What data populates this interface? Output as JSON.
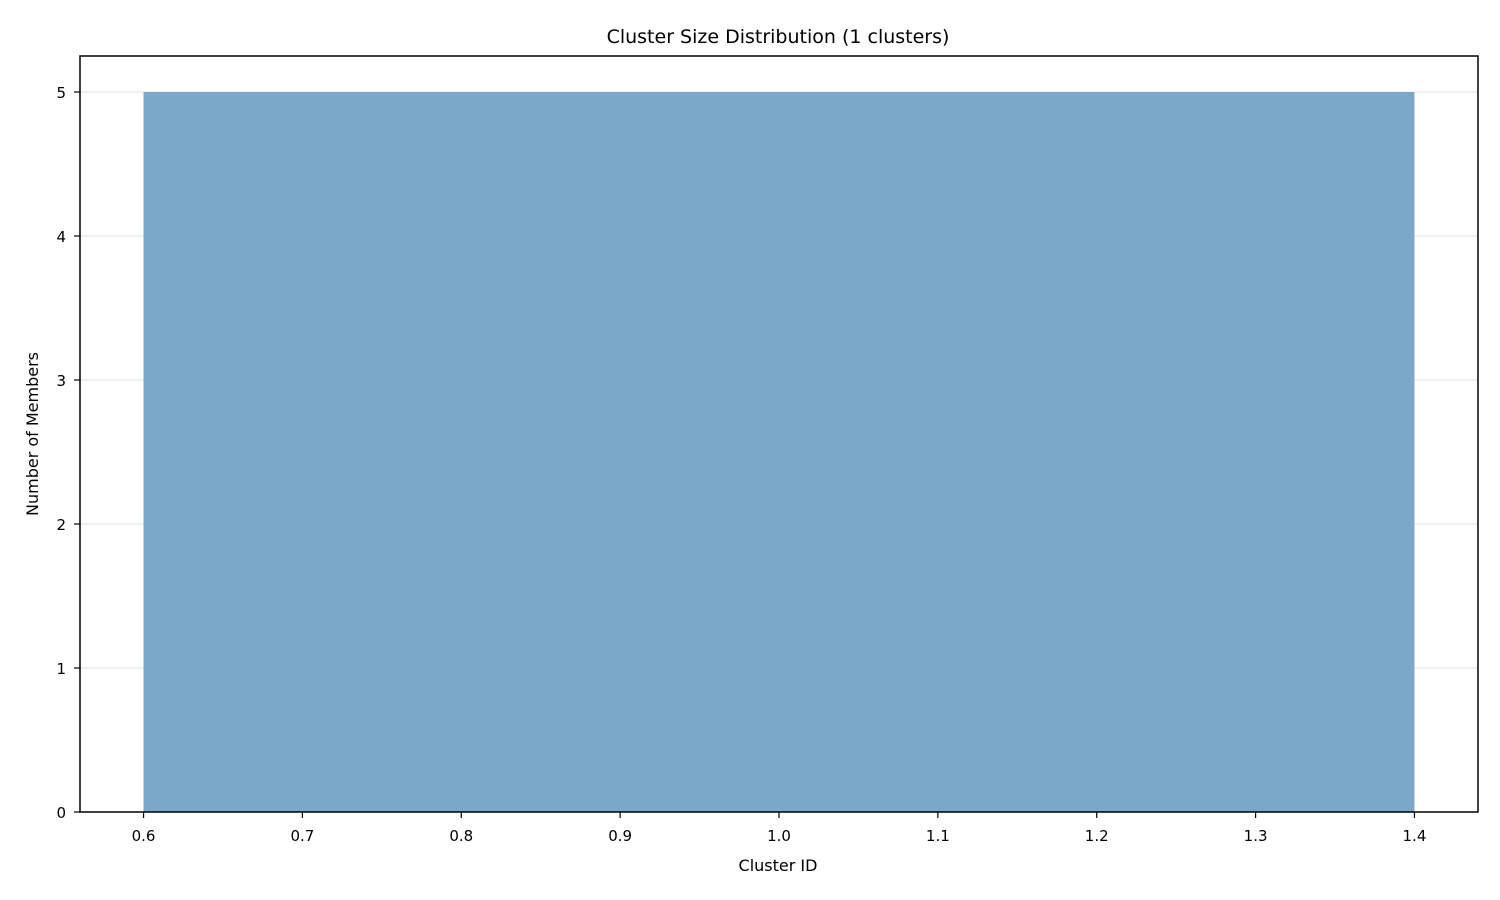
{
  "chart_data": {
    "type": "bar",
    "title": "Cluster Size Distribution (1 clusters)",
    "xlabel": "Cluster ID",
    "ylabel": "Number of Members",
    "categories": [
      1.0
    ],
    "values": [
      5
    ],
    "bar_width": 0.8,
    "xlim": [
      0.56,
      1.44
    ],
    "ylim": [
      0,
      5.25
    ],
    "xticks": [
      0.6,
      0.7,
      0.8,
      0.9,
      1.0,
      1.1,
      1.2,
      1.3,
      1.4
    ],
    "xtick_labels": [
      "0.6",
      "0.7",
      "0.8",
      "0.9",
      "1.0",
      "1.1",
      "1.2",
      "1.3",
      "1.4"
    ],
    "yticks": [
      0,
      1,
      2,
      3,
      4,
      5
    ],
    "ytick_labels": [
      "0",
      "1",
      "2",
      "3",
      "4",
      "5"
    ],
    "grid": "y-axis only",
    "bar_color": "#7ba7c9",
    "grid_color": "#e6e6e6",
    "axis_color": "#000000"
  }
}
